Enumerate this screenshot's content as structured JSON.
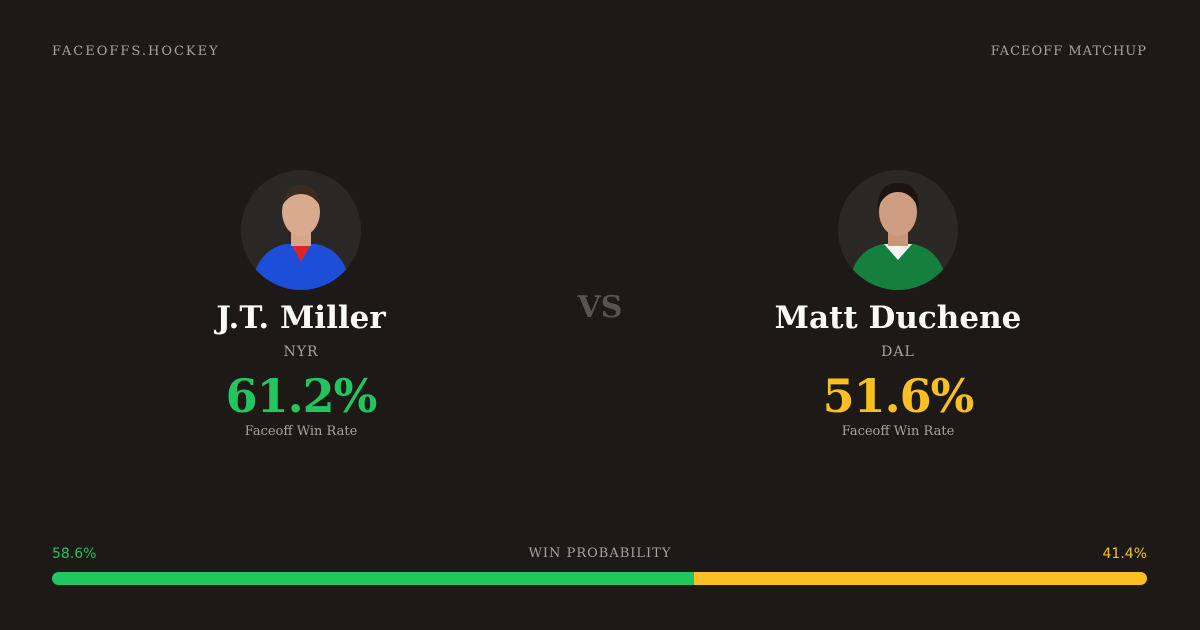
{
  "header": {
    "site": "FACEOFFS.HOCKEY",
    "label": "FACEOFF MATCHUP"
  },
  "players": [
    {
      "name": "J.T. Miller",
      "team": "NYR",
      "stat": "61.2%",
      "stat_label": "Faceoff Win Rate"
    },
    {
      "name": "Matt Duchene",
      "team": "DAL",
      "stat": "51.6%",
      "stat_label": "Faceoff Win Rate"
    }
  ],
  "vs": "VS",
  "win_probability": {
    "label": "WIN PROBABILITY",
    "segments": [
      {
        "value": 58.6,
        "label": "58.6%",
        "color": "#22c55e"
      },
      {
        "value": 41.4,
        "label": "41.4%",
        "color": "#fbbf24"
      }
    ]
  }
}
